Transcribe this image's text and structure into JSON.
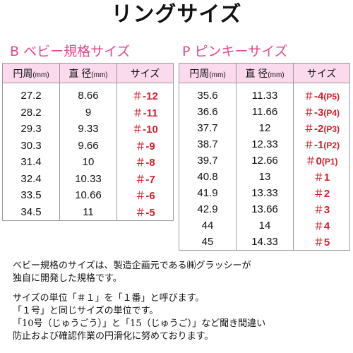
{
  "title": "リングサイズ",
  "baby": {
    "heading": "B ベビー規格サイズ",
    "headers": [
      {
        "label": "円周",
        "unit": "(mm)"
      },
      {
        "label": "直 径",
        "unit": "(mm)"
      },
      {
        "label": "サイズ",
        "unit": ""
      }
    ],
    "rows": [
      {
        "c": "27.2",
        "d": "8.66",
        "s": "-12"
      },
      {
        "c": "28.2",
        "d": "9",
        "s": "-11"
      },
      {
        "c": "29.3",
        "d": "9.33",
        "s": "-10"
      },
      {
        "c": "30.3",
        "d": "9.66",
        "s": "-9"
      },
      {
        "c": "31.4",
        "d": "10",
        "s": "-8"
      },
      {
        "c": "32.4",
        "d": "10.33",
        "s": "-7"
      },
      {
        "c": "33.5",
        "d": "10.66",
        "s": "-6"
      },
      {
        "c": "34.5",
        "d": "11",
        "s": "-5"
      }
    ]
  },
  "pinky": {
    "heading": "P ピンキーサイズ",
    "headers": [
      {
        "label": "円周",
        "unit": "(mm)"
      },
      {
        "label": "直 径",
        "unit": "(mm)"
      },
      {
        "label": "サイズ",
        "unit": ""
      }
    ],
    "rows": [
      {
        "c": "35.6",
        "d": "11.33",
        "s": "-4",
        "p": "(P5)"
      },
      {
        "c": "36.6",
        "d": "11.66",
        "s": "-3",
        "p": "(P4)"
      },
      {
        "c": "37.7",
        "d": "12",
        "s": "-2",
        "p": "(P3)"
      },
      {
        "c": "38.7",
        "d": "12.33",
        "s": "-1",
        "p": "(P2)"
      },
      {
        "c": "39.7",
        "d": "12.66",
        "s": "0",
        "p": "(P1)"
      },
      {
        "c": "40.8",
        "d": "13",
        "s": "1",
        "p": ""
      },
      {
        "c": "41.9",
        "d": "13.33",
        "s": "2",
        "p": ""
      },
      {
        "c": "42.9",
        "d": "13.66",
        "s": "3",
        "p": ""
      },
      {
        "c": "44",
        "d": "14",
        "s": "4",
        "p": ""
      },
      {
        "c": "45",
        "d": "14.33",
        "s": "5",
        "p": ""
      }
    ]
  },
  "size_mark": "＃",
  "notes": {
    "para1": [
      "ベビー規格のサイズは、製造企画元である㈱グラッシーが",
      "独自に開発した規格です。"
    ],
    "para2": [
      "サイズの単位「＃１」を「１番」と呼びます。",
      "「１号」と同じサイズの単位です。",
      "「10号（じゅうごう）」と「15（じゅうご）」など聞き間違い",
      "防止および確認作業の円滑化に努めております。"
    ]
  }
}
